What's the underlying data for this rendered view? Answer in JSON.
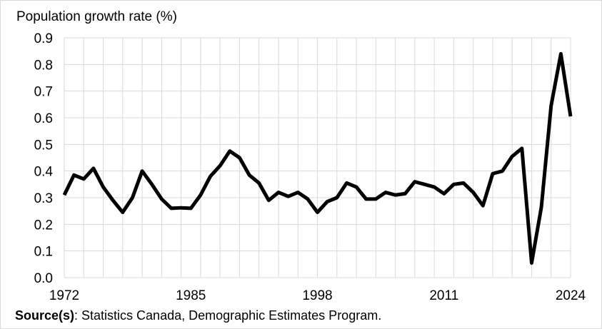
{
  "chart_data": {
    "type": "line",
    "ylabel": "Population growth rate (%)",
    "xlabel": "",
    "xlim": [
      1972,
      2024
    ],
    "ylim": [
      0,
      0.9
    ],
    "x_ticks": [
      "1972",
      "1985",
      "1998",
      "2011",
      "2024"
    ],
    "y_ticks": [
      "0.0",
      "0.1",
      "0.2",
      "0.3",
      "0.4",
      "0.5",
      "0.6",
      "0.7",
      "0.8",
      "0.9"
    ],
    "grid": true,
    "line_color": "#000000",
    "series": [
      {
        "x": [
          1972,
          1973,
          1974,
          1975,
          1976,
          1977,
          1978,
          1979,
          1980,
          1981,
          1982,
          1983,
          1984,
          1985,
          1986,
          1987,
          1988,
          1989,
          1990,
          1991,
          1992,
          1993,
          1994,
          1995,
          1996,
          1997,
          1998,
          1999,
          2000,
          2001,
          2002,
          2003,
          2004,
          2005,
          2006,
          2007,
          2008,
          2009,
          2010,
          2011,
          2012,
          2013,
          2014,
          2015,
          2016,
          2017,
          2018,
          2019,
          2020,
          2021,
          2022,
          2023,
          2024
        ],
        "values": [
          0.31,
          0.385,
          0.37,
          0.41,
          0.34,
          0.29,
          0.245,
          0.3,
          0.4,
          0.35,
          0.295,
          0.26,
          0.262,
          0.26,
          0.31,
          0.38,
          0.42,
          0.475,
          0.45,
          0.385,
          0.355,
          0.29,
          0.32,
          0.305,
          0.32,
          0.295,
          0.245,
          0.285,
          0.3,
          0.355,
          0.34,
          0.295,
          0.295,
          0.32,
          0.31,
          0.315,
          0.36,
          0.35,
          0.34,
          0.315,
          0.35,
          0.355,
          0.32,
          0.27,
          0.39,
          0.4,
          0.455,
          0.485,
          0.055,
          0.265,
          0.645,
          0.84,
          0.605
        ]
      }
    ]
  },
  "source": {
    "label": "Source(s)",
    "text": ": Statistics Canada, Demographic Estimates Program."
  }
}
